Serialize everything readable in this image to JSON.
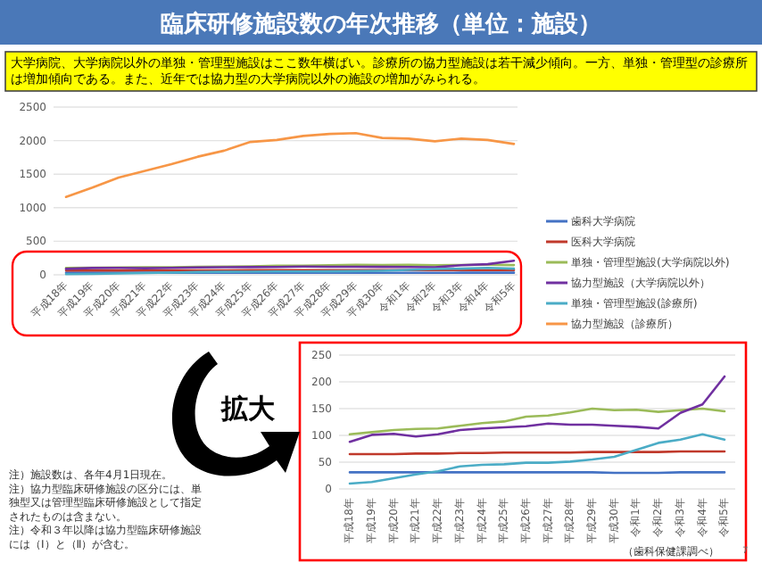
{
  "chart_data": [
    {
      "type": "line",
      "title": "臨床研修施設数の年次推移（単位：施設）",
      "subtitle": "大学病院、大学病院以外の単独・管理型施設はここ数年横ばい。診療所の協力型施設は若干減少傾向。一方、単独・管理型の診療所は増加傾向である。また、近年では協力型の大学病院以外の施設の増加がみられる。",
      "categories": [
        "平成18年",
        "平成19年",
        "平成20年",
        "平成21年",
        "平成22年",
        "平成23年",
        "平成24年",
        "平成25年",
        "平成26年",
        "平成27年",
        "平成28年",
        "平成29年",
        "平成30年",
        "令和1年",
        "令和2年",
        "令和3年",
        "令和4年",
        "令和5年"
      ],
      "series": [
        {
          "name": "歯科大学病院",
          "color": "#4472c4",
          "values": [
            31,
            31,
            31,
            31,
            31,
            31,
            31,
            31,
            31,
            31,
            31,
            31,
            30,
            30,
            30,
            31,
            31,
            31
          ]
        },
        {
          "name": "医科大学病院",
          "color": "#c0392b",
          "values": [
            65,
            65,
            65,
            66,
            66,
            67,
            67,
            68,
            68,
            68,
            68,
            69,
            69,
            69,
            69,
            70,
            70,
            70
          ]
        },
        {
          "name": "単独・管理型施設(大学病院以外)",
          "color": "#9bbb59",
          "values": [
            102,
            106,
            110,
            112,
            113,
            118,
            123,
            126,
            135,
            137,
            143,
            150,
            147,
            148,
            144,
            147,
            150,
            145
          ]
        },
        {
          "name": "協力型施設（大学病院以外）",
          "color": "#7030a0",
          "values": [
            88,
            101,
            103,
            98,
            102,
            110,
            113,
            115,
            117,
            122,
            120,
            120,
            118,
            116,
            113,
            142,
            158,
            210
          ]
        },
        {
          "name": "単独・管理型施設(診療所)",
          "color": "#4bacc6",
          "values": [
            10,
            13,
            20,
            27,
            33,
            42,
            45,
            46,
            49,
            49,
            51,
            55,
            60,
            73,
            86,
            92,
            102,
            92
          ]
        },
        {
          "name": "協力型施設（診療所）",
          "color": "#f79646",
          "values": [
            1160,
            1300,
            1450,
            1550,
            1650,
            1760,
            1850,
            1980,
            2010,
            2070,
            2100,
            2110,
            2040,
            2030,
            1990,
            2030,
            2010,
            1950
          ]
        }
      ],
      "ylim": [
        0,
        2500
      ],
      "yticks": [
        0,
        500,
        1000,
        1500,
        2000,
        2500
      ],
      "grid": "y",
      "legend": "right",
      "annotations": [
        "注）施設数は、各年4月1日現在。",
        "注）協力型臨床研修施設の区分には、単独型又は管理型臨床研修施設として指定されたものは含まない。",
        "注）令和３年以降は協力型臨床研修施設には（Ⅰ）と（Ⅱ）が含む。"
      ]
    },
    {
      "type": "line",
      "categories": [
        "平成18年",
        "平成19年",
        "平成20年",
        "平成21年",
        "平成22年",
        "平成23年",
        "平成24年",
        "平成25年",
        "平成26年",
        "平成27年",
        "平成28年",
        "平成29年",
        "平成30年",
        "令和1年",
        "令和2年",
        "令和3年",
        "令和4年",
        "令和5年"
      ],
      "series": [
        {
          "color": "#4472c4",
          "values": [
            31,
            31,
            31,
            31,
            31,
            31,
            31,
            31,
            31,
            31,
            31,
            31,
            30,
            30,
            30,
            31,
            31,
            31
          ]
        },
        {
          "color": "#c0392b",
          "values": [
            65,
            65,
            65,
            66,
            66,
            67,
            67,
            68,
            68,
            68,
            68,
            69,
            69,
            69,
            69,
            70,
            70,
            70
          ]
        },
        {
          "color": "#9bbb59",
          "values": [
            102,
            106,
            110,
            112,
            113,
            118,
            123,
            126,
            135,
            137,
            143,
            150,
            147,
            148,
            144,
            147,
            150,
            145
          ]
        },
        {
          "color": "#7030a0",
          "values": [
            88,
            101,
            103,
            98,
            102,
            110,
            113,
            115,
            117,
            122,
            120,
            120,
            118,
            116,
            113,
            142,
            158,
            210
          ]
        },
        {
          "color": "#4bacc6",
          "values": [
            10,
            13,
            20,
            27,
            33,
            42,
            45,
            46,
            49,
            49,
            51,
            55,
            60,
            73,
            86,
            92,
            102,
            92
          ]
        }
      ],
      "ylim": [
        0,
        250
      ],
      "yticks": [
        0,
        50,
        100,
        150,
        200,
        250
      ],
      "grid": "y",
      "annotations": [
        "拡大",
        "（歯科保健課調べ）",
        "7"
      ]
    }
  ]
}
